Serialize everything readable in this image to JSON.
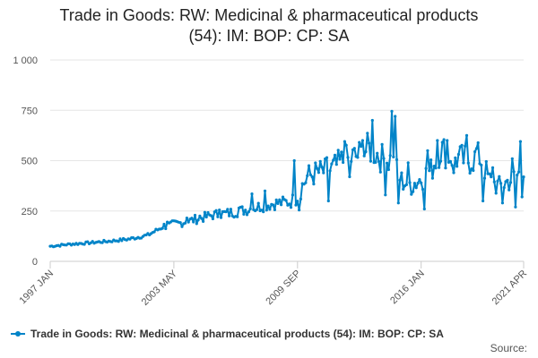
{
  "chart_data": {
    "type": "line",
    "title_lines": [
      "Trade in Goods: RW: Medicinal & pharmaceutical products",
      "(54): IM: BOP: CP: SA"
    ],
    "xlabel": "",
    "ylabel": "",
    "ylim": [
      0,
      1000
    ],
    "yticks": [
      0,
      250,
      500,
      750,
      1000
    ],
    "ytick_labels": [
      "0",
      "250",
      "500",
      "750",
      "1 000"
    ],
    "x_range": [
      "1997 JAN",
      "2021 APR"
    ],
    "xtick_labels": [
      "1997 JAN",
      "2003 MAY",
      "2009 SEP",
      "2016 JAN",
      "2021 APR"
    ],
    "xtick_month_index": [
      0,
      76,
      152,
      228,
      291
    ],
    "legend": "top-none, bottom-left",
    "series": [
      {
        "name": "Trade in Goods: RW: Medicinal & pharmaceutical products (54): IM: BOP: CP: SA",
        "color": "#0084c8",
        "start": "1997 JAN",
        "frequency": "monthly",
        "anchors_month_value": [
          [
            0,
            75
          ],
          [
            12,
            85
          ],
          [
            24,
            92
          ],
          [
            36,
            100
          ],
          [
            48,
            110
          ],
          [
            60,
            130
          ],
          [
            70,
            175
          ],
          [
            80,
            190
          ],
          [
            90,
            210
          ],
          [
            100,
            230
          ],
          [
            110,
            240
          ],
          [
            120,
            255
          ],
          [
            130,
            275
          ],
          [
            140,
            290
          ],
          [
            148,
            295
          ],
          [
            152,
            330
          ],
          [
            158,
            420
          ],
          [
            164,
            440
          ],
          [
            172,
            450
          ],
          [
            180,
            500
          ],
          [
            188,
            520
          ],
          [
            196,
            560
          ],
          [
            200,
            540
          ],
          [
            204,
            510
          ],
          [
            210,
            500
          ],
          [
            216,
            400
          ],
          [
            222,
            380
          ],
          [
            228,
            410
          ],
          [
            234,
            450
          ],
          [
            240,
            560
          ],
          [
            246,
            520
          ],
          [
            252,
            510
          ],
          [
            258,
            500
          ],
          [
            264,
            520
          ],
          [
            270,
            400
          ],
          [
            276,
            370
          ],
          [
            282,
            400
          ],
          [
            288,
            430
          ],
          [
            291,
            470
          ]
        ],
        "spikes_month_value": [
          [
            72,
            195
          ],
          [
            84,
            215
          ],
          [
            92,
            225
          ],
          [
            104,
            255
          ],
          [
            116,
            265
          ],
          [
            124,
            335
          ],
          [
            132,
            350
          ],
          [
            150,
            500
          ],
          [
            170,
            515
          ],
          [
            181,
            595
          ],
          [
            192,
            600
          ],
          [
            198,
            700
          ],
          [
            210,
            745
          ],
          [
            212,
            720
          ],
          [
            220,
            490
          ],
          [
            232,
            550
          ],
          [
            238,
            600
          ],
          [
            244,
            600
          ],
          [
            256,
            625
          ],
          [
            262,
            560
          ],
          [
            272,
            465
          ],
          [
            284,
            510
          ],
          [
            289,
            595
          ]
        ],
        "dips_month_value": [
          [
            153,
            255
          ],
          [
            171,
            300
          ],
          [
            184,
            420
          ],
          [
            206,
            330
          ],
          [
            214,
            290
          ],
          [
            230,
            260
          ],
          [
            248,
            440
          ],
          [
            266,
            300
          ],
          [
            278,
            290
          ],
          [
            286,
            270
          ],
          [
            290,
            320
          ]
        ]
      }
    ]
  },
  "legend": {
    "label": "Trade in Goods: RW: Medicinal & pharmaceutical products (54): IM: BOP: CP: SA"
  },
  "credits": "Source:"
}
